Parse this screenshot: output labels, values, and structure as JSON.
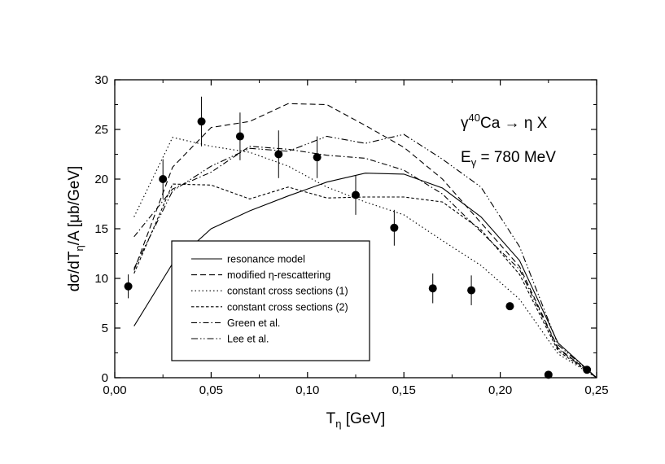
{
  "chart_data": {
    "type": "line",
    "xlabel": "T",
    "xlabel_sub": "η",
    "xlabel_unit": " [GeV]",
    "ylabel": "dσ/dT",
    "ylabel_sub": "η",
    "ylabel_rest": "/A  [μb/GeV]",
    "xlim": [
      0,
      0.25
    ],
    "ylim": [
      0,
      30
    ],
    "x_ticks": [
      0,
      0.05,
      0.1,
      0.15,
      0.2,
      0.25
    ],
    "x_tick_labels": [
      "0,00",
      "0,05",
      "0,10",
      "0,15",
      "0,20",
      "0,25"
    ],
    "y_ticks": [
      0,
      5,
      10,
      15,
      20,
      25,
      30
    ],
    "y_tick_labels": [
      "0",
      "5",
      "10",
      "15",
      "20",
      "25",
      "30"
    ],
    "grid": false,
    "legend_position": "lower-left",
    "annotations": {
      "reaction_gamma": "γ",
      "reaction_sup": "40",
      "reaction_rest": "Ca → η X",
      "energy_E": "E",
      "energy_sub": "γ",
      "energy_rest": " = 780 MeV"
    },
    "series": [
      {
        "name": "resonance model",
        "dash": "solid",
        "x": [
          0.01,
          0.03,
          0.05,
          0.07,
          0.09,
          0.11,
          0.13,
          0.15,
          0.17,
          0.19,
          0.21,
          0.23,
          0.25
        ],
        "y": [
          5.2,
          11.5,
          15.0,
          16.8,
          18.3,
          19.7,
          20.6,
          20.5,
          19.1,
          16.2,
          11.8,
          3.5,
          0.0
        ]
      },
      {
        "name": "modified η-rescattering",
        "dash": "longdash",
        "x": [
          0.01,
          0.03,
          0.05,
          0.07,
          0.09,
          0.11,
          0.13,
          0.15,
          0.17,
          0.19,
          0.21,
          0.23,
          0.25
        ],
        "y": [
          10.8,
          21.2,
          25.2,
          25.8,
          27.6,
          27.5,
          25.4,
          23.2,
          20.0,
          15.6,
          11.2,
          3.0,
          0.0
        ]
      },
      {
        "name": "constant cross sections (1)",
        "dash": "dotted",
        "x": [
          0.01,
          0.03,
          0.05,
          0.07,
          0.09,
          0.11,
          0.13,
          0.15,
          0.17,
          0.19,
          0.21,
          0.23,
          0.25
        ],
        "y": [
          16.2,
          24.2,
          23.3,
          22.7,
          21.3,
          19.2,
          17.7,
          16.4,
          13.8,
          11.3,
          7.9,
          2.4,
          0.0
        ]
      },
      {
        "name": "constant cross sections (2)",
        "dash": "shortdash",
        "x": [
          0.01,
          0.03,
          0.05,
          0.07,
          0.09,
          0.11,
          0.13,
          0.15,
          0.17,
          0.19,
          0.21,
          0.23,
          0.25
        ],
        "y": [
          10.5,
          19.5,
          19.4,
          18.0,
          19.2,
          18.1,
          18.2,
          18.2,
          17.7,
          14.9,
          10.4,
          2.7,
          0.0
        ]
      },
      {
        "name": "Green et al.",
        "dash": "dashdot",
        "x": [
          0.01,
          0.03,
          0.05,
          0.07,
          0.09,
          0.11,
          0.13,
          0.15,
          0.17,
          0.19,
          0.21,
          0.23,
          0.25
        ],
        "y": [
          14.2,
          19.0,
          20.7,
          23.3,
          23.0,
          22.4,
          22.1,
          20.9,
          18.5,
          14.7,
          10.9,
          2.9,
          0.0
        ]
      },
      {
        "name": "Lee et al.",
        "dash": "dashdotdot",
        "x": [
          0.01,
          0.03,
          0.05,
          0.07,
          0.09,
          0.11,
          0.13,
          0.15,
          0.17,
          0.19,
          0.21,
          0.23,
          0.25
        ],
        "y": [
          11.0,
          18.8,
          21.3,
          23.1,
          22.8,
          24.3,
          23.6,
          24.5,
          22.0,
          19.2,
          13.2,
          3.3,
          0.0
        ]
      }
    ],
    "data_points": {
      "x": [
        0.007,
        0.025,
        0.045,
        0.065,
        0.085,
        0.105,
        0.125,
        0.145,
        0.165,
        0.185,
        0.205,
        0.225,
        0.245
      ],
      "y": [
        9.2,
        20.0,
        25.8,
        24.3,
        22.5,
        22.2,
        18.4,
        15.1,
        9.0,
        8.8,
        7.2,
        0.3,
        0.8
      ],
      "yerr": [
        1.2,
        2.0,
        2.5,
        2.4,
        2.4,
        2.1,
        2.0,
        1.8,
        1.5,
        1.5,
        0.3,
        0.1,
        0.3
      ]
    }
  }
}
